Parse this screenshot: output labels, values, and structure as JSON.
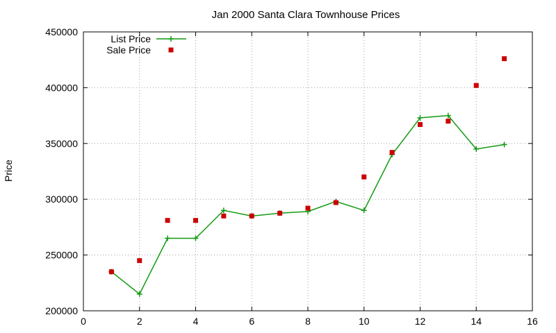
{
  "chart_data": {
    "type": "line",
    "title": "Jan 2000 Santa Clara Townhouse Prices",
    "xlabel": "",
    "ylabel": "Price",
    "xlim": [
      0,
      16
    ],
    "ylim": [
      200000,
      450000
    ],
    "xticks": [
      0,
      2,
      4,
      6,
      8,
      10,
      12,
      14,
      16
    ],
    "yticks": [
      200000,
      250000,
      300000,
      350000,
      400000,
      450000
    ],
    "grid": true,
    "legend_position": "top-left",
    "series": [
      {
        "name": "List Price",
        "style": "line-with-plus-markers",
        "color": "#119911",
        "x": [
          1,
          2,
          3,
          4,
          5,
          6,
          7,
          8,
          9,
          10,
          11,
          12,
          13,
          14,
          15
        ],
        "values": [
          235000,
          215000,
          265000,
          265000,
          290000,
          285000,
          287500,
          289000,
          298000,
          290000,
          340000,
          373000,
          375000,
          345000,
          349000
        ]
      },
      {
        "name": "Sale Price",
        "style": "square-markers",
        "color": "#cc0000",
        "x": [
          1,
          2,
          3,
          4,
          5,
          6,
          7,
          8,
          9,
          10,
          11,
          12,
          13,
          14,
          15
        ],
        "values": [
          235000,
          245000,
          281000,
          281000,
          285000,
          285000,
          287500,
          292000,
          297000,
          320000,
          342000,
          367000,
          370000,
          402000,
          426000
        ]
      }
    ]
  }
}
